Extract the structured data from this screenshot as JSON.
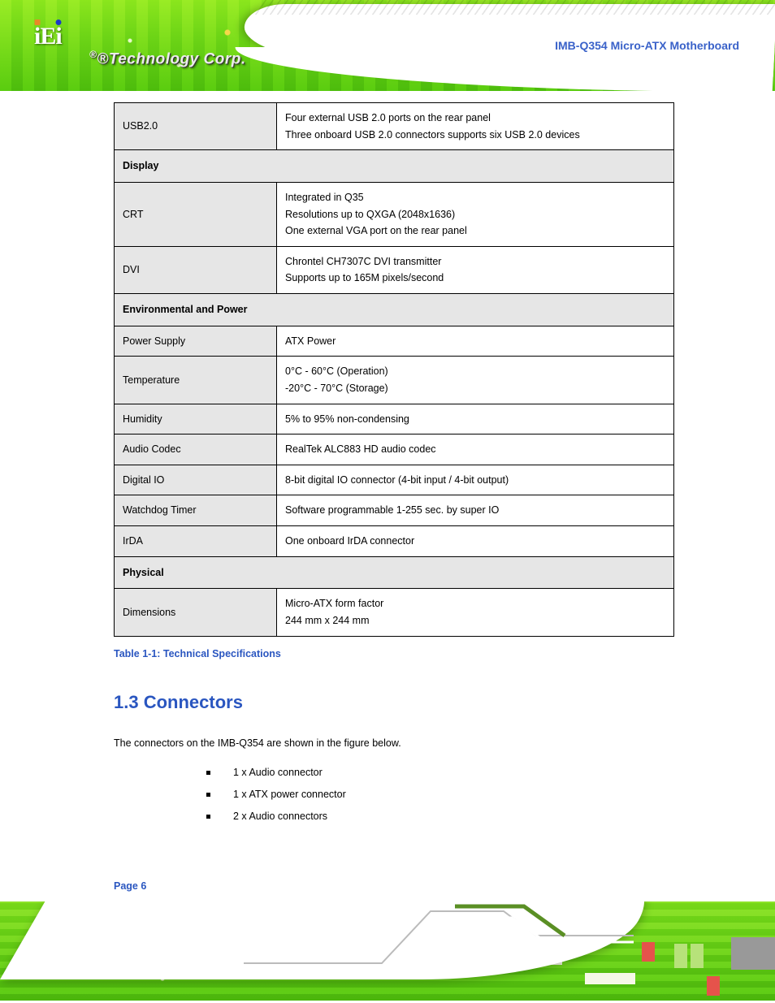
{
  "header": {
    "logo_text": "®Technology Corp.",
    "doc_title": "IMB-Q354 Micro-ATX Motherboard"
  },
  "spec_table": {
    "rows": [
      {
        "type": "row",
        "label": "USB2.0",
        "value_lines": [
          "Four external USB 2.0 ports on the rear panel",
          "Three onboard USB 2.0 connectors supports six USB 2.0 devices"
        ]
      },
      {
        "type": "section",
        "label": "Display"
      },
      {
        "type": "row",
        "label": "CRT",
        "value_lines": [
          "Integrated in Q35",
          "Resolutions up to QXGA (2048x1636)",
          "One external VGA port on the rear panel"
        ]
      },
      {
        "type": "row",
        "label": "DVI",
        "value_lines": [
          "Chrontel CH7307C DVI transmitter",
          "Supports up to 165M pixels/second"
        ]
      },
      {
        "type": "section",
        "label": "Environmental and Power"
      },
      {
        "type": "row",
        "label": "Power Supply",
        "value_lines": [
          "ATX Power"
        ]
      },
      {
        "type": "row",
        "label": "Temperature",
        "value_lines": [
          "0°C - 60°C (Operation)",
          "-20°C - 70°C (Storage)"
        ]
      },
      {
        "type": "row",
        "label": "Humidity",
        "value_lines": [
          "5% to 95% non-condensing"
        ]
      },
      {
        "type": "row",
        "label": "Audio Codec",
        "value_lines": [
          "RealTek ALC883 HD audio codec"
        ]
      },
      {
        "type": "row",
        "label": "Digital IO",
        "value_lines": [
          "8-bit digital IO connector (4-bit input / 4-bit output)"
        ]
      },
      {
        "type": "row",
        "label": "Watchdog Timer",
        "value_lines": [
          "Software programmable 1-255 sec. by super IO"
        ]
      },
      {
        "type": "row",
        "label": "IrDA",
        "value_lines": [
          "One onboard IrDA connector"
        ]
      },
      {
        "type": "section",
        "label": "Physical"
      },
      {
        "type": "row",
        "label": "Dimensions",
        "value_lines": [
          "Micro-ATX form factor",
          "244 mm x 244 mm"
        ]
      }
    ]
  },
  "table_caption": "Table 1-1: Technical Specifications",
  "section": {
    "heading": "1.3 Connectors",
    "intro": "The connectors on the IMB-Q354 are shown in the figure below.",
    "bullets": [
      "1 x Audio connector",
      "1 x ATX power connector",
      "2 x Audio connectors"
    ]
  },
  "footer": {
    "page_label": "Page 6"
  },
  "colors": {
    "link_blue": "#2a56c0",
    "header_blue": "#3a62c9",
    "label_bg": "#e6e6e6"
  }
}
